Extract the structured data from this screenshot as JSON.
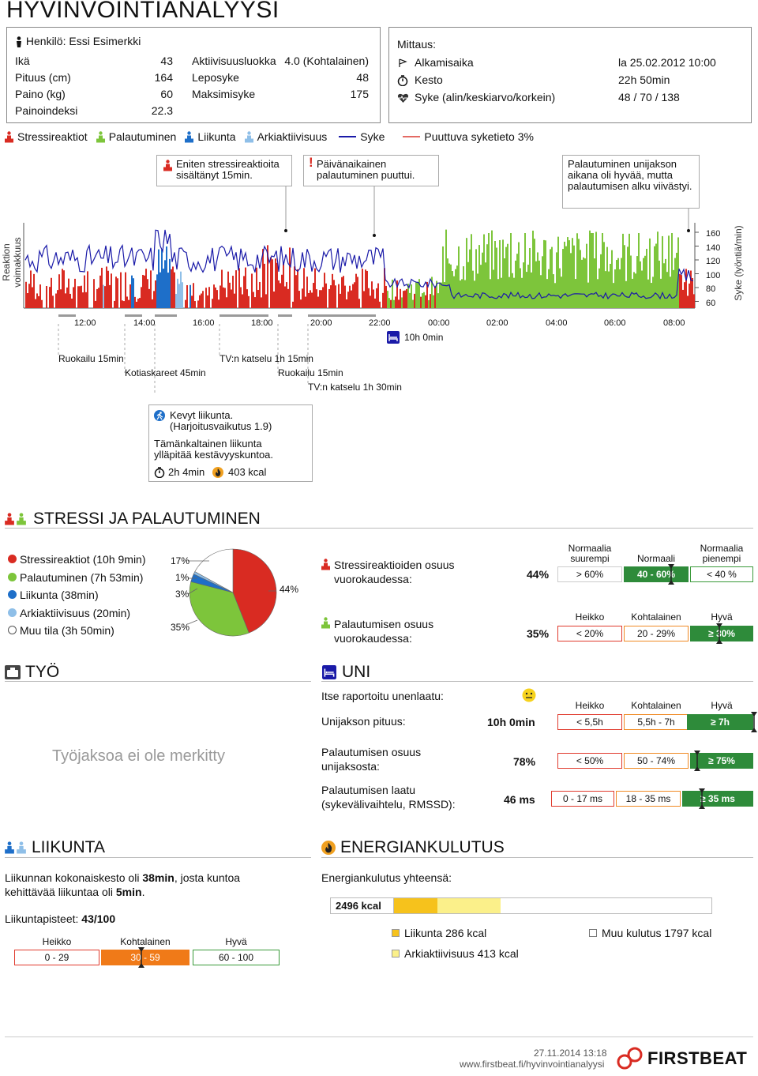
{
  "title": "HYVINVOINTIANALYYSI",
  "person": {
    "name_label": "Henkilö: Essi Esimerkki",
    "rows": [
      {
        "label": "Ikä",
        "value": "43"
      },
      {
        "label": "Pituus (cm)",
        "value": "164"
      },
      {
        "label": "Paino (kg)",
        "value": "60"
      },
      {
        "label": "Painoindeksi",
        "value": "22.3"
      }
    ],
    "rows2": [
      {
        "label": "Aktiivisuusluokka",
        "value": "4.0 (Kohtalainen)"
      },
      {
        "label": "Leposyke",
        "value": "48"
      },
      {
        "label": "Maksimisyke",
        "value": "175"
      }
    ]
  },
  "measurement": {
    "heading": "Mittaus:",
    "rows": [
      {
        "icon": "start-icon",
        "label": "Alkamisaika",
        "value": "la 25.02.2012 10:00"
      },
      {
        "icon": "stopwatch-icon",
        "label": "Kesto",
        "value": "22h 50min"
      },
      {
        "icon": "heart-icon",
        "label": "Syke (alin/keskiarvo/korkein)",
        "value": "48 / 70 / 138"
      }
    ]
  },
  "legend": {
    "stress": "Stressireaktiot",
    "recovery": "Palautuminen",
    "exercise": "Liikunta",
    "everyday": "Arkiaktiivisuus",
    "hr": "Syke",
    "missing": "Puuttuva syketieto 3%"
  },
  "colors": {
    "stress": "#d92b22",
    "recovery": "#7dc53b",
    "exercise": "#1e6fc9",
    "everyday": "#8fbfe8",
    "hr": "#1a1aa8",
    "grey": "#9a9a9a"
  },
  "callouts": {
    "c1": "Eniten stressireaktioita sisältänyt 15min.",
    "c2_mark": "!",
    "c2": "Päivänaikainen palautuminen puuttui.",
    "c3": "Palautuminen unijakson aikana oli hyvää, mutta palautumisen alku viivästyi."
  },
  "chart_data": {
    "type": "bar",
    "ylabel_left": "Reaktion voimakkuus",
    "ylabel_right": "Syke (lyöntiä/min)",
    "right_ticks": [
      "160",
      "140",
      "120",
      "100",
      "80",
      "60"
    ],
    "x_ticks": [
      "12:00",
      "14:00",
      "16:00",
      "18:00",
      "20:00",
      "22:00",
      "00:00",
      "02:00",
      "04:00",
      "06:00",
      "08:00"
    ],
    "sleep_label": "10h 0min"
  },
  "events": [
    {
      "label": "Ruokailu 15min"
    },
    {
      "label": "Kotiaskareet 45min"
    },
    {
      "label": "TV:n katselu 1h 15min"
    },
    {
      "label": "Ruokailu 15min"
    },
    {
      "label": "TV:n katselu 1h 30min"
    }
  ],
  "activity_box": {
    "line1": "Kevyt liikunta.",
    "line2": "(Harjoitusvaikutus 1.9)",
    "line3": "Tämänkaltainen liikunta",
    "line4": "ylläpitää kestävyyskuntoa.",
    "duration": "2h 4min",
    "kcal": "403 kcal"
  },
  "stress_section": {
    "title": "STRESSI JA PALAUTUMINEN",
    "legend": [
      {
        "label": "Stressireaktiot (10h 9min)",
        "color": "#d92b22"
      },
      {
        "label": "Palautuminen (7h 53min)",
        "color": "#7dc53b"
      },
      {
        "label": "Liikunta (38min)",
        "color": "#1e6fc9"
      },
      {
        "label": "Arkiaktiivisuus (20min)",
        "color": "#8fbfe8"
      },
      {
        "label": "Muu tila (3h 50min)",
        "color": "#ffffff"
      }
    ],
    "pie": {
      "values": [
        44,
        35,
        3,
        1,
        17
      ],
      "labels": [
        "17%",
        "1%",
        "3%",
        "35%",
        "44%"
      ]
    },
    "stress_share_label": "Stressireaktioiden osuus vuorokaudessa:",
    "stress_share": "44%",
    "stress_scale_headers": [
      "Normaalia suurempi",
      "Normaali",
      "Normaalia pienempi"
    ],
    "stress_scale": [
      "> 60%",
      "40 - 60%",
      "< 40 %"
    ],
    "rec_share_label": "Palautumisen osuus vuorokaudessa:",
    "rec_share": "35%",
    "rec_scale_headers": [
      "Heikko",
      "Kohtalainen",
      "Hyvä"
    ],
    "rec_scale": [
      "< 20%",
      "20 - 29%",
      "≥ 30%"
    ]
  },
  "work": {
    "title": "TYÖ",
    "empty": "Työjaksoa ei ole merkitty"
  },
  "sleep": {
    "title": "UNI",
    "quality_label": "Itse raportoitu unenlaatu:",
    "headers": [
      "Heikko",
      "Kohtalainen",
      "Hyvä"
    ],
    "rows": [
      {
        "label": "Unijakson pituus:",
        "value": "10h 0min",
        "scale": [
          "< 5,5h",
          "5,5h - 7h",
          "≥ 7h"
        ]
      },
      {
        "label": "Palautumisen osuus unijaksosta:",
        "value": "78%",
        "scale": [
          "< 50%",
          "50 - 74%",
          "≥ 75%"
        ]
      },
      {
        "label": "Palautumisen laatu (sykevälivaihtelu, RMSSD):",
        "value": "46 ms",
        "scale": [
          "0 - 17 ms",
          "18 - 35 ms",
          "≥ 35 ms"
        ]
      }
    ]
  },
  "exercise": {
    "title": "LIIKUNTA",
    "text_a": "Liikunnan kokonaiskesto oli ",
    "text_b": "38min",
    "text_c": ", josta kuntoa kehittävää liikuntaa oli ",
    "text_d": "5min",
    "text_e": ".",
    "points_label": "Liikuntapisteet: ",
    "points": "43/100",
    "headers": [
      "Heikko",
      "Kohtalainen",
      "Hyvä"
    ],
    "scale": [
      "0 - 29",
      "30 - 59",
      "60 - 100"
    ]
  },
  "energy": {
    "title": "ENERGIANKULUTUS",
    "total_label": "Energiankulutus yhteensä:",
    "total": "2496 kcal",
    "items": [
      {
        "label": "Liikunta 286 kcal",
        "color": "#f6c21c"
      },
      {
        "label": "Muu kulutus 1797 kcal",
        "color": "#ffffff"
      },
      {
        "label": "Arkiaktiivisuus 413 kcal",
        "color": "#fbf08a"
      }
    ]
  },
  "footer": {
    "date": "27.11.2014 13:18",
    "url": "www.firstbeat.fi/hyvinvointianalyysi",
    "brand": "FIRSTBEAT"
  }
}
